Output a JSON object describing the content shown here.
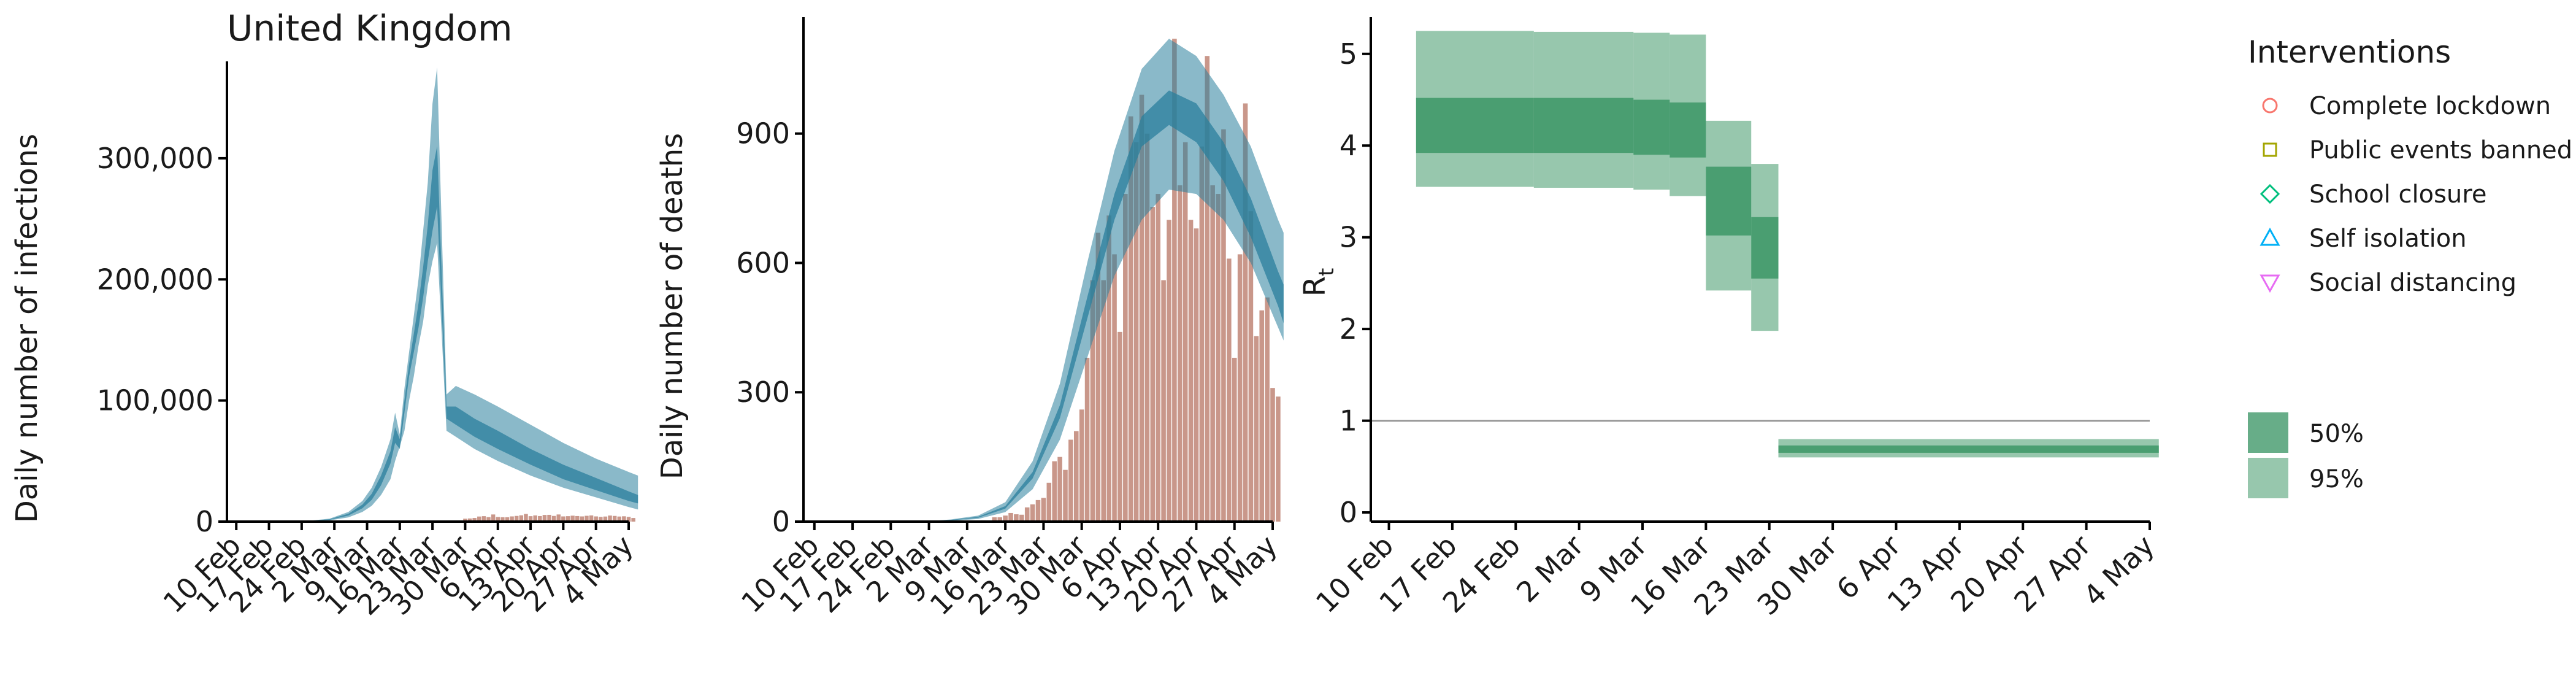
{
  "title": "United Kingdom",
  "colors": {
    "band_infections_deaths": "#2a7f9c",
    "observed_bars": "#c9978a",
    "rt_band": "#41996a",
    "rt_threshold_line": "#999999",
    "axis": "#000000"
  },
  "chart_data": [
    {
      "id": "infections",
      "type": "area",
      "ylabel": "Daily number of infections",
      "yticks": [
        0,
        100000,
        200000,
        300000
      ],
      "ytick_labels": [
        "0",
        "100,000",
        "200,000",
        "300,000"
      ],
      "ylim": [
        0,
        380000
      ],
      "xlim_days": [
        -2,
        84
      ],
      "x_ticks": [
        "10 Feb",
        "17 Feb",
        "24 Feb",
        "2 Mar",
        "9 Mar",
        "16 Mar",
        "23 Mar",
        "30 Mar",
        "6 Apr",
        "13 Apr",
        "20 Apr",
        "27 Apr",
        "4 May"
      ],
      "band_95": {
        "dates": [
          "10 Feb",
          "15 Feb",
          "20 Feb",
          "25 Feb",
          "1 Mar",
          "5 Mar",
          "8 Mar",
          "10 Mar",
          "12 Mar",
          "14 Mar",
          "15 Mar",
          "16 Mar",
          "17 Mar",
          "18 Mar",
          "19 Mar",
          "20 Mar",
          "21 Mar",
          "22 Mar",
          "23 Mar",
          "24 Mar",
          "26 Mar",
          "28 Mar",
          "1 Apr",
          "6 Apr",
          "13 Apr",
          "20 Apr",
          "27 Apr",
          "4 May",
          "6 May"
        ],
        "lower": [
          0,
          0,
          0,
          200,
          1000,
          3500,
          8000,
          13000,
          22000,
          35000,
          50000,
          62000,
          75000,
          100000,
          120000,
          145000,
          165000,
          195000,
          215000,
          230000,
          75000,
          70000,
          60000,
          50000,
          38000,
          28000,
          20000,
          12000,
          10000
        ],
        "upper": [
          0,
          0,
          0,
          400,
          2500,
          8000,
          17000,
          28000,
          45000,
          68000,
          90000,
          72000,
          110000,
          140000,
          170000,
          200000,
          240000,
          280000,
          345000,
          375000,
          105000,
          112000,
          105000,
          95000,
          80000,
          65000,
          52000,
          41000,
          38000
        ]
      },
      "band_50": {
        "dates": [
          "10 Feb",
          "15 Feb",
          "20 Feb",
          "25 Feb",
          "1 Mar",
          "5 Mar",
          "8 Mar",
          "10 Mar",
          "12 Mar",
          "14 Mar",
          "15 Mar",
          "16 Mar",
          "17 Mar",
          "18 Mar",
          "19 Mar",
          "20 Mar",
          "21 Mar",
          "22 Mar",
          "23 Mar",
          "24 Mar",
          "26 Mar",
          "28 Mar",
          "1 Apr",
          "6 Apr",
          "13 Apr",
          "20 Apr",
          "27 Apr",
          "4 May",
          "6 May"
        ],
        "lower": [
          0,
          0,
          0,
          250,
          1500,
          5000,
          11000,
          18000,
          30000,
          48000,
          65000,
          60000,
          90000,
          120000,
          140000,
          160000,
          185000,
          215000,
          240000,
          260000,
          85000,
          80000,
          70000,
          60000,
          47000,
          35000,
          26000,
          17000,
          15000
        ],
        "upper": [
          0,
          0,
          0,
          330,
          2000,
          6500,
          14000,
          23000,
          38000,
          58000,
          78000,
          68000,
          100000,
          130000,
          155000,
          180000,
          210000,
          245000,
          290000,
          310000,
          95000,
          95000,
          85000,
          75000,
          60000,
          47000,
          36000,
          25000,
          22000
        ]
      },
      "observed": {
        "dates": [
          "30 Mar",
          "31 Mar",
          "1 Apr",
          "2 Apr",
          "3 Apr",
          "4 Apr",
          "5 Apr",
          "6 Apr",
          "7 Apr",
          "8 Apr",
          "9 Apr",
          "10 Apr",
          "11 Apr",
          "12 Apr",
          "13 Apr",
          "14 Apr",
          "15 Apr",
          "16 Apr",
          "17 Apr",
          "18 Apr",
          "19 Apr",
          "20 Apr",
          "21 Apr",
          "22 Apr",
          "23 Apr",
          "24 Apr",
          "25 Apr",
          "26 Apr",
          "27 Apr",
          "28 Apr",
          "29 Apr",
          "30 Apr",
          "1 May",
          "2 May",
          "3 May",
          "4 May",
          "5 May"
        ],
        "values": [
          2400,
          2600,
          3000,
          4200,
          4500,
          3700,
          5900,
          3800,
          3600,
          3600,
          4300,
          4700,
          5200,
          6300,
          4500,
          5100,
          4600,
          5500,
          5600,
          4700,
          5900,
          4300,
          4500,
          4900,
          4600,
          4300,
          4800,
          5100,
          4300,
          3900,
          4200,
          5000,
          4700,
          4200,
          4400,
          3900,
          3000
        ]
      }
    },
    {
      "id": "deaths",
      "type": "area",
      "ylabel": "Daily number of deaths",
      "yticks": [
        0,
        300,
        600,
        900
      ],
      "ytick_labels": [
        "0",
        "300",
        "600",
        "900"
      ],
      "ylim": [
        0,
        1170
      ],
      "xlim_days": [
        -2,
        84
      ],
      "x_ticks": [
        "10 Feb",
        "17 Feb",
        "24 Feb",
        "2 Mar",
        "9 Mar",
        "16 Mar",
        "23 Mar",
        "30 Mar",
        "6 Apr",
        "13 Apr",
        "20 Apr",
        "27 Apr",
        "4 May"
      ],
      "band_95": {
        "dates": [
          "10 Feb",
          "20 Feb",
          "1 Mar",
          "6 Mar",
          "11 Mar",
          "16 Mar",
          "21 Mar",
          "26 Mar",
          "31 Mar",
          "5 Apr",
          "10 Apr",
          "15 Apr",
          "20 Apr",
          "25 Apr",
          "30 Apr",
          "5 May",
          "6 May"
        ],
        "lower": [
          0,
          0,
          0,
          2,
          6,
          22,
          75,
          190,
          380,
          570,
          700,
          770,
          760,
          700,
          600,
          450,
          420
        ],
        "upper": [
          0,
          0,
          0,
          5,
          14,
          45,
          140,
          320,
          600,
          860,
          1050,
          1120,
          1080,
          990,
          870,
          700,
          670
        ]
      },
      "band_50": {
        "dates": [
          "10 Feb",
          "20 Feb",
          "1 Mar",
          "6 Mar",
          "11 Mar",
          "16 Mar",
          "21 Mar",
          "26 Mar",
          "31 Mar",
          "5 Apr",
          "10 Apr",
          "15 Apr",
          "20 Apr",
          "25 Apr",
          "30 Apr",
          "5 May",
          "6 May"
        ],
        "lower": [
          0,
          0,
          0,
          3,
          9,
          30,
          100,
          240,
          470,
          700,
          870,
          920,
          880,
          790,
          660,
          500,
          460
        ],
        "upper": [
          0,
          0,
          0,
          4,
          11,
          36,
          115,
          270,
          520,
          760,
          940,
          1000,
          970,
          880,
          750,
          580,
          550
        ]
      },
      "observed": {
        "dates": [
          "3 Mar",
          "4 Mar",
          "5 Mar",
          "6 Mar",
          "7 Mar",
          "8 Mar",
          "9 Mar",
          "10 Mar",
          "11 Mar",
          "12 Mar",
          "13 Mar",
          "14 Mar",
          "15 Mar",
          "16 Mar",
          "17 Mar",
          "18 Mar",
          "19 Mar",
          "20 Mar",
          "21 Mar",
          "22 Mar",
          "23 Mar",
          "24 Mar",
          "25 Mar",
          "26 Mar",
          "27 Mar",
          "28 Mar",
          "29 Mar",
          "30 Mar",
          "31 Mar",
          "1 Apr",
          "2 Apr",
          "3 Apr",
          "4 Apr",
          "5 Apr",
          "6 Apr",
          "7 Apr",
          "8 Apr",
          "9 Apr",
          "10 Apr",
          "11 Apr",
          "12 Apr",
          "13 Apr",
          "14 Apr",
          "15 Apr",
          "16 Apr",
          "17 Apr",
          "18 Apr",
          "19 Apr",
          "20 Apr",
          "21 Apr",
          "22 Apr",
          "23 Apr",
          "24 Apr",
          "25 Apr",
          "26 Apr",
          "27 Apr",
          "28 Apr",
          "29 Apr",
          "30 Apr",
          "1 May",
          "2 May",
          "3 May",
          "4 May",
          "5 May"
        ],
        "values": [
          1,
          0,
          1,
          1,
          0,
          1,
          2,
          2,
          1,
          3,
          1,
          10,
          10,
          14,
          20,
          17,
          16,
          33,
          40,
          50,
          55,
          90,
          140,
          150,
          120,
          190,
          210,
          260,
          380,
          560,
          670,
          560,
          710,
          620,
          440,
          760,
          940,
          880,
          990,
          900,
          730,
          760,
          560,
          700,
          1120,
          780,
          880,
          700,
          680,
          870,
          1080,
          780,
          760,
          910,
          610,
          380,
          620,
          970,
          720,
          430,
          490,
          520,
          310,
          290
        ]
      }
    },
    {
      "id": "rt",
      "type": "area",
      "ylabel": "R",
      "ylabel_sub": "t",
      "yticks": [
        0,
        1,
        2,
        3,
        4,
        5
      ],
      "ytick_labels": [
        "0",
        "1",
        "2",
        "3",
        "4",
        "5"
      ],
      "ylim": [
        -0.1,
        5.4
      ],
      "xlim_days": [
        -2,
        84
      ],
      "x_ticks": [
        "10 Feb",
        "17 Feb",
        "24 Feb",
        "2 Mar",
        "9 Mar",
        "16 Mar",
        "23 Mar",
        "30 Mar",
        "6 Apr",
        "13 Apr",
        "20 Apr",
        "27 Apr",
        "4 May"
      ],
      "threshold": 1,
      "segments": [
        {
          "start": "13 Feb",
          "end": "26 Feb",
          "low95": 3.55,
          "high95": 5.25,
          "low50": 3.92,
          "high50": 4.52
        },
        {
          "start": "26 Feb",
          "end": "8 Mar",
          "low95": 3.54,
          "high95": 5.24,
          "low50": 3.92,
          "high50": 4.52
        },
        {
          "start": "8 Mar",
          "end": "12 Mar",
          "low95": 3.52,
          "high95": 5.23,
          "low50": 3.9,
          "high50": 4.5
        },
        {
          "start": "12 Mar",
          "end": "16 Mar",
          "low95": 3.45,
          "high95": 5.21,
          "low50": 3.87,
          "high50": 4.47
        },
        {
          "start": "16 Mar",
          "end": "21 Mar",
          "low95": 2.42,
          "high95": 4.27,
          "low50": 3.02,
          "high50": 3.77
        },
        {
          "start": "21 Mar",
          "end": "24 Mar",
          "low95": 1.98,
          "high95": 3.8,
          "low50": 2.55,
          "high50": 3.22
        },
        {
          "start": "24 Mar",
          "end": "5 May",
          "low95": 0.6,
          "high95": 0.8,
          "low50": 0.65,
          "high50": 0.73
        }
      ],
      "legend": {
        "title": "Interventions",
        "items": [
          {
            "label": "Complete lockdown",
            "symbol": "circle",
            "color": "#f8766d"
          },
          {
            "label": "Public events banned",
            "symbol": "square",
            "color": "#a3a500"
          },
          {
            "label": "School closure",
            "symbol": "diamond",
            "color": "#00bf7d"
          },
          {
            "label": "Self isolation",
            "symbol": "triangle-up",
            "color": "#00b0f6"
          },
          {
            "label": "Social distancing",
            "symbol": "triangle-down",
            "color": "#e76bf3"
          }
        ],
        "ci_items": [
          {
            "label": "50%",
            "opacity": 0.8
          },
          {
            "label": "95%",
            "opacity": 0.55
          }
        ]
      }
    }
  ]
}
